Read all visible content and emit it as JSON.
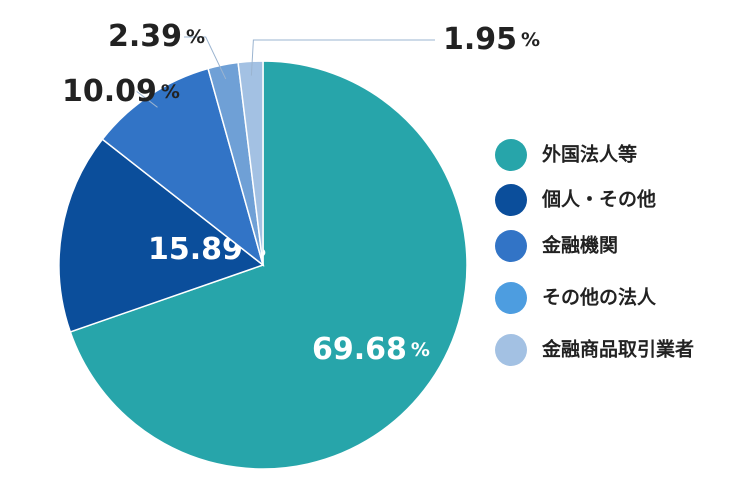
{
  "chart_data": {
    "type": "pie",
    "categories": [
      "外国法人等",
      "個人・その他",
      "金融機関",
      "その他の法人",
      "金融商品取引業者"
    ],
    "values": [
      69.68,
      15.89,
      10.09,
      2.39,
      1.95
    ],
    "unit": "%",
    "colors": [
      "#27a5aa",
      "#0b4e9b",
      "#3274c6",
      "#6fa0d6",
      "#a3c1e3"
    ],
    "legend_colors": [
      "#27a5aa",
      "#0b4e9b",
      "#3274c6",
      "#4d9de0",
      "#a3c1e3"
    ]
  }
}
